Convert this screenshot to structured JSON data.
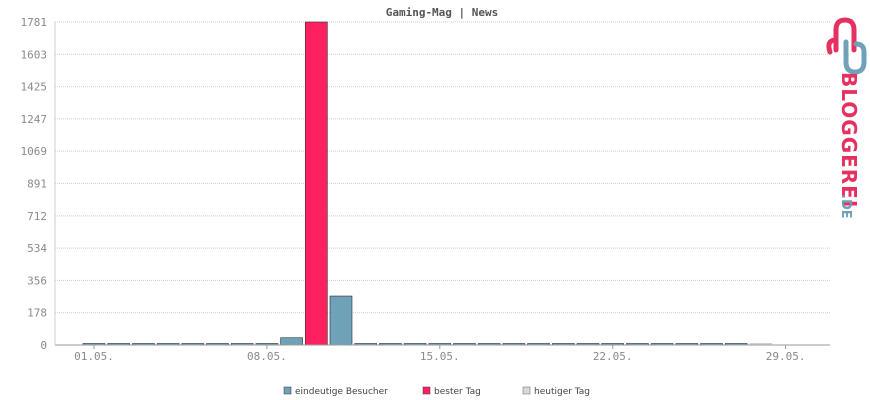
{
  "chart_data": {
    "type": "bar",
    "title": "Gaming-Mag | News",
    "xlabel": "",
    "ylabel": "",
    "ylim": [
      0,
      1781
    ],
    "y_ticks": [
      "0",
      "178",
      "356",
      "534",
      "712",
      "891",
      "1069",
      "1247",
      "1425",
      "1603",
      "1781"
    ],
    "x_tick_labels": [
      "01.05.",
      "08.05.",
      "15.05.",
      "22.05.",
      "29.05."
    ],
    "categories": [
      "01.05.",
      "02.05.",
      "03.05.",
      "04.05.",
      "05.05.",
      "06.05.",
      "07.05.",
      "08.05.",
      "09.05.",
      "10.05.",
      "11.05.",
      "12.05.",
      "13.05.",
      "14.05.",
      "15.05.",
      "16.05.",
      "17.05.",
      "18.05.",
      "19.05.",
      "20.05.",
      "21.05.",
      "22.05.",
      "23.05.",
      "24.05.",
      "25.05.",
      "26.05.",
      "27.05.",
      "28.05.",
      "29.05.",
      "30.05.",
      "31.05."
    ],
    "series": [
      {
        "name": "eindeutige Besucher",
        "color": "#6fa1b8",
        "values": [
          8,
          8,
          8,
          8,
          8,
          8,
          8,
          8,
          40,
          null,
          270,
          8,
          8,
          8,
          8,
          8,
          8,
          8,
          8,
          8,
          8,
          8,
          8,
          8,
          8,
          8,
          8,
          null,
          0,
          0,
          0
        ]
      },
      {
        "name": "bester Tag",
        "color": "#ff2060",
        "values": [
          null,
          null,
          null,
          null,
          null,
          null,
          null,
          null,
          null,
          1781,
          null,
          null,
          null,
          null,
          null,
          null,
          null,
          null,
          null,
          null,
          null,
          null,
          null,
          null,
          null,
          null,
          null,
          null,
          null,
          null,
          null
        ]
      },
      {
        "name": "heutiger Tag",
        "color": "#d8d8d8",
        "values": [
          null,
          null,
          null,
          null,
          null,
          null,
          null,
          null,
          null,
          null,
          null,
          null,
          null,
          null,
          null,
          null,
          null,
          null,
          null,
          null,
          null,
          null,
          null,
          null,
          null,
          null,
          null,
          4,
          null,
          null,
          null
        ]
      }
    ],
    "grid": true,
    "legend_position": "bottom"
  },
  "logo": {
    "text_main": "BLOGGEREI",
    "text_suffix": ".DE"
  }
}
